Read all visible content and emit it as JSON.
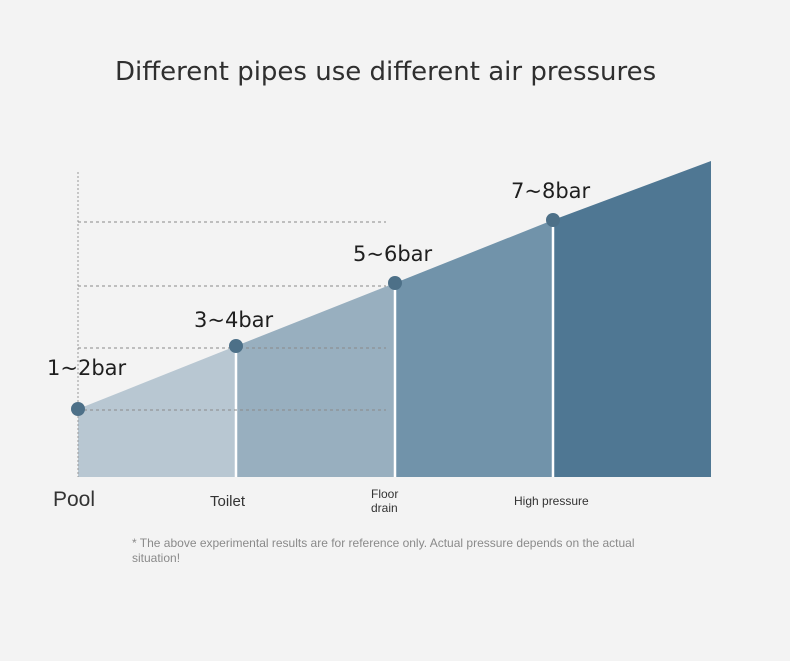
{
  "title": "Different pipes use different air pressures",
  "footnote": "* The above experimental results are for reference only. Actual pressure depends on the actual situation!",
  "chart_data": {
    "type": "area",
    "title": "Different pipes use different air pressures",
    "xlabel": "",
    "ylabel": "",
    "grid": false,
    "categories": [
      "Pool",
      "Toilet",
      "Floor drain",
      "High pressure"
    ],
    "category_lines": [
      [
        "Pool"
      ],
      [
        "Toilet"
      ],
      [
        "Floor",
        "drain"
      ],
      [
        "High pressure"
      ]
    ],
    "points": [
      {
        "category": "Pool",
        "label": "1~2bar",
        "value": 1.5
      },
      {
        "category": "Toilet",
        "label": "3~4bar",
        "value": 3.5
      },
      {
        "category": "Floor drain",
        "label": "5~6bar",
        "value": 5.5
      },
      {
        "category": "High pressure",
        "label": "7~8bar",
        "value": 7.5
      }
    ],
    "series_colors": [
      "#b8c7d2",
      "#98afbf",
      "#7193aa",
      "#4f7793"
    ],
    "marker_color": "#4d7088"
  }
}
